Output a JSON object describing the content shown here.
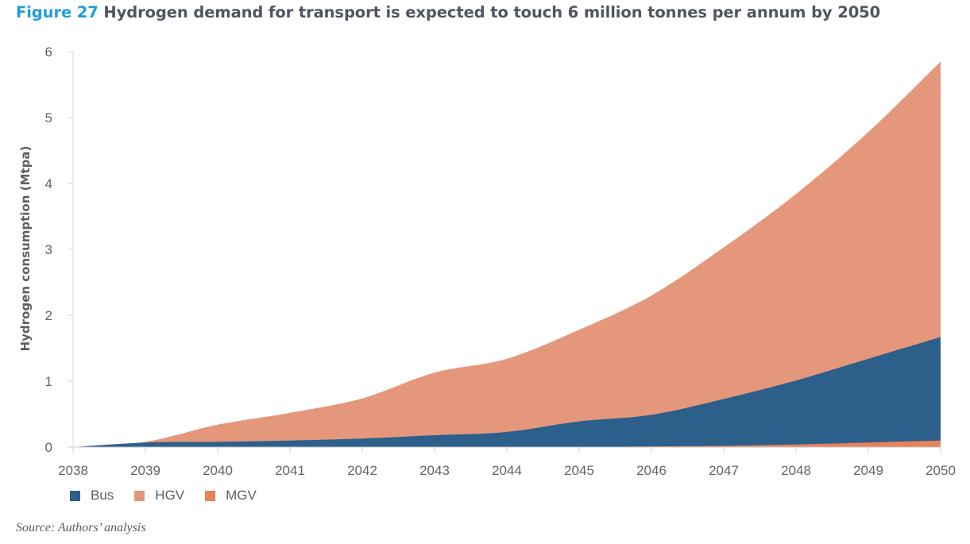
{
  "title": {
    "figure_label": "Figure 27",
    "text": "Hydrogen demand for transport is expected to touch 6 million tonnes per annum by 2050"
  },
  "source": "Source: Authors’ analysis",
  "chart_data": {
    "type": "area",
    "stacked": true,
    "x": [
      2038,
      2039,
      2040,
      2041,
      2042,
      2043,
      2044,
      2045,
      2046,
      2047,
      2048,
      2049,
      2050
    ],
    "xlim": [
      2038,
      2050
    ],
    "ylim": [
      0,
      6
    ],
    "yticks": [
      0,
      1,
      2,
      3,
      4,
      5,
      6
    ],
    "xtick_labels": [
      "2038",
      "2039",
      "2040",
      "2041",
      "2042",
      "2043",
      "2044",
      "2045",
      "2046",
      "2047",
      "2048",
      "2049",
      "2050"
    ],
    "ylabel": "Hydrogen consumption (Mtpa)",
    "xlabel": "",
    "grid": false,
    "legend_position": "bottom-left",
    "series": [
      {
        "name": "MGV",
        "color": "#e8825a",
        "values": [
          0,
          0,
          0,
          0,
          0,
          0,
          0,
          0,
          0.01,
          0.02,
          0.04,
          0.07,
          0.1
        ]
      },
      {
        "name": "Bus",
        "color": "#2d5f8b",
        "values": [
          0,
          0.07,
          0.08,
          0.1,
          0.13,
          0.18,
          0.23,
          0.39,
          0.48,
          0.71,
          0.97,
          1.27,
          1.57
        ]
      },
      {
        "name": "HGV",
        "color": "#e4977a",
        "values": [
          0,
          0.01,
          0.26,
          0.42,
          0.61,
          0.95,
          1.11,
          1.39,
          1.81,
          2.3,
          2.83,
          3.44,
          4.18
        ]
      }
    ],
    "legend_order": [
      "Bus",
      "HGV",
      "MGV"
    ]
  }
}
